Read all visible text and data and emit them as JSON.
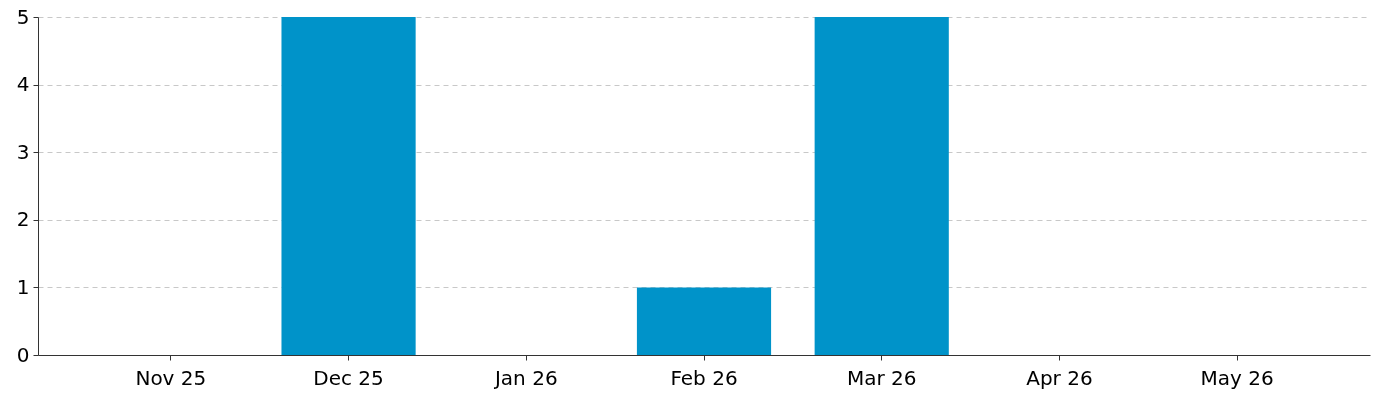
{
  "chart_data": {
    "type": "bar",
    "categories": [
      "Nov 25",
      "Dec 25",
      "Jan 26",
      "Feb 26",
      "Mar 26",
      "Apr 26",
      "May 26"
    ],
    "values": [
      0,
      5,
      0,
      1,
      5,
      0,
      0
    ],
    "color": "#0093c9",
    "ylim": [
      0,
      5
    ],
    "yticks": [
      0,
      1,
      2,
      3,
      4,
      5
    ],
    "grid": "y"
  }
}
